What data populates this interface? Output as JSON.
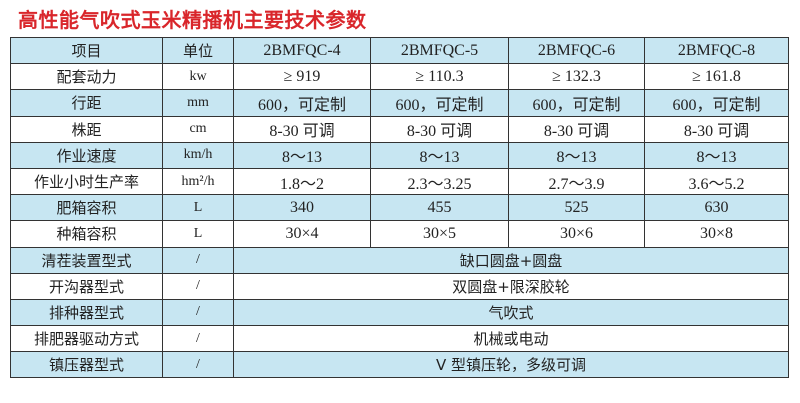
{
  "title": "高性能气吹式玉米精播机主要技术参数",
  "colors": {
    "title": "#d9262b",
    "row_shade": "#c7e6f2",
    "row_plain": "#ffffff"
  },
  "header": [
    "项目",
    "单位",
    "2BMFQC-4",
    "2BMFQC-5",
    "2BMFQC-6",
    "2BMFQC-8"
  ],
  "rows": [
    {
      "label": "配套动力",
      "unit": "kw",
      "values": [
        "≥ 919",
        "≥ 110.3",
        "≥ 132.3",
        "≥ 161.8"
      ]
    },
    {
      "label": "行距",
      "unit": "mm",
      "values": [
        "600，可定制",
        "600，可定制",
        "600，可定制",
        "600，可定制"
      ]
    },
    {
      "label": "株距",
      "unit": "cm",
      "values": [
        "8-30 可调",
        "8-30 可调",
        "8-30 可调",
        "8-30 可调"
      ]
    },
    {
      "label": "作业速度",
      "unit": "km/h",
      "values": [
        "8～13",
        "8～13",
        "8～13",
        "8～13"
      ]
    },
    {
      "label": "作业小时生产率",
      "unit": "hm²/h",
      "values": [
        "1.8～2",
        "2.3～3.25",
        "2.7～3.9",
        "3.6～5.2"
      ]
    },
    {
      "label": "肥箱容积",
      "unit": "L",
      "values": [
        "340",
        "455",
        "525",
        "630"
      ]
    },
    {
      "label": "种箱容积",
      "unit": "L",
      "values": [
        "30×4",
        "30×5",
        "30×6",
        "30×8"
      ]
    }
  ],
  "merged_rows": [
    {
      "label": "清茬装置型式",
      "unit": "/",
      "value": "缺口圆盘+圆盘"
    },
    {
      "label": "开沟器型式",
      "unit": "/",
      "value": "双圆盘+限深胶轮"
    },
    {
      "label": "排种器型式",
      "unit": "/",
      "value": "气吹式"
    },
    {
      "label": "排肥器驱动方式",
      "unit": "/",
      "value": "机械或电动"
    },
    {
      "label": "镇压器型式",
      "unit": "/",
      "value": "V 型镇压轮，多级可调"
    }
  ]
}
